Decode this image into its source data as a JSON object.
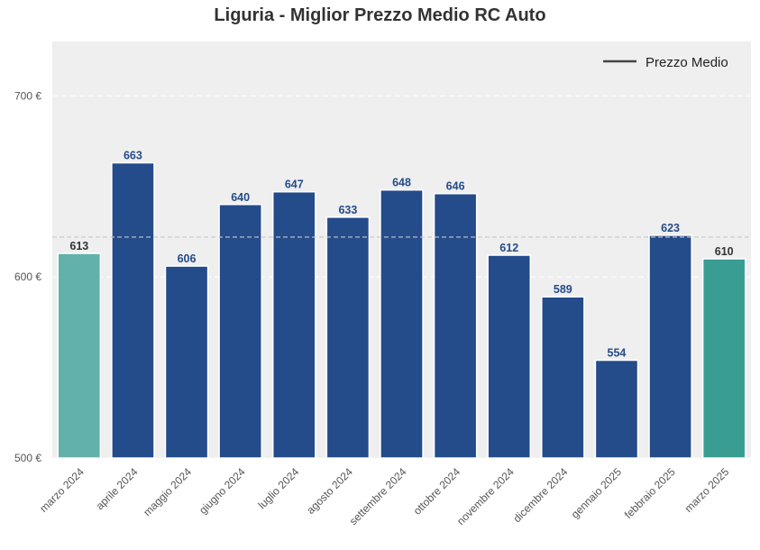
{
  "chart_data": {
    "type": "bar",
    "title": "Liguria - Miglior Prezzo Medio RC Auto",
    "xlabel": "",
    "ylabel": "",
    "categories": [
      "marzo 2024",
      "aprile 2024",
      "maggio 2024",
      "giugno 2024",
      "luglio 2024",
      "agosto 2024",
      "settembre 2024",
      "ottobre 2024",
      "novembre 2024",
      "dicembre 2024",
      "gennaio 2025",
      "febbraio 2025",
      "marzo 2025"
    ],
    "values": [
      613,
      663,
      606,
      640,
      647,
      633,
      648,
      646,
      612,
      589,
      554,
      623,
      610
    ],
    "value_labels": [
      "613",
      "663",
      "606",
      "640",
      "647",
      "633",
      "648",
      "646",
      "612",
      "589",
      "554",
      "623",
      "610"
    ],
    "ylim": [
      500,
      730
    ],
    "yticks": [
      500,
      600,
      700
    ],
    "ytick_labels": [
      "500 €",
      "600 €",
      "700 €"
    ],
    "mean_line": {
      "value": 622,
      "name": "Prezzo Medio"
    },
    "legend": {
      "position": "top-right",
      "label": "Prezzo Medio"
    },
    "grid": true,
    "colors": {
      "bar": "#244b8a",
      "first_bar": "#62b1aa",
      "last_bar": "#3a9d94",
      "bar_label": "#244b8a",
      "edge_label": "#333333",
      "plot_background": "#efefef",
      "mean_line": "#c8c8c8"
    }
  }
}
